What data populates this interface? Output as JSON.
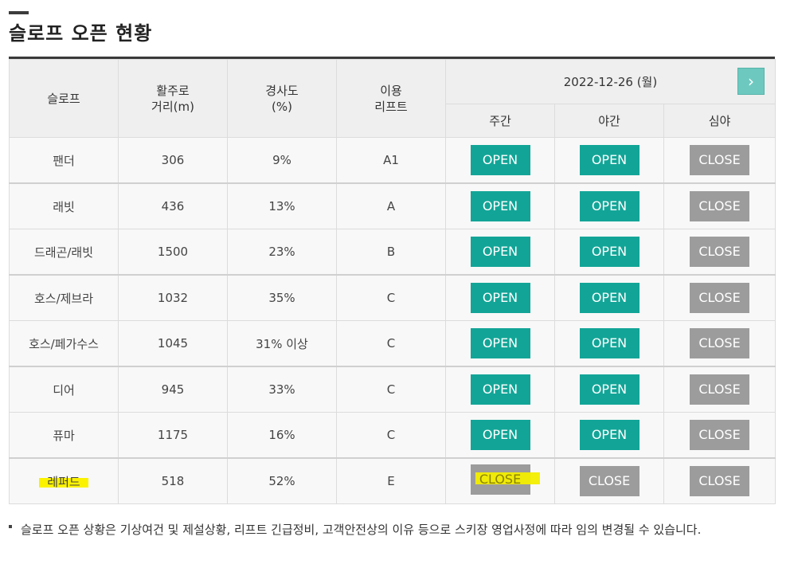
{
  "page": {
    "title": "슬로프 오픈 현황"
  },
  "table": {
    "headers": {
      "slope": "슬로프",
      "distance_line1": "활주로",
      "distance_line2": "거리(m)",
      "grade_line1": "경사도",
      "grade_line2": "(%)",
      "lift_line1": "이용",
      "lift_line2": "리프트",
      "date": "2022-12-26 (월)",
      "day": "주간",
      "night": "야간",
      "late": "심야"
    },
    "next_icon": "chevron-right-icon",
    "rows": [
      {
        "slope": "팬더",
        "distance": "306",
        "grade": "9%",
        "lift": "A1",
        "day": "OPEN",
        "night": "OPEN",
        "late": "CLOSE"
      },
      {
        "slope": "래빗",
        "distance": "436",
        "grade": "13%",
        "lift": "A",
        "day": "OPEN",
        "night": "OPEN",
        "late": "CLOSE"
      },
      {
        "slope": "드래곤/래빗",
        "distance": "1500",
        "grade": "23%",
        "lift": "B",
        "day": "OPEN",
        "night": "OPEN",
        "late": "CLOSE"
      },
      {
        "slope": "호스/제브라",
        "distance": "1032",
        "grade": "35%",
        "lift": "C",
        "day": "OPEN",
        "night": "OPEN",
        "late": "CLOSE"
      },
      {
        "slope": "호스/페가수스",
        "distance": "1045",
        "grade": "31% 이상",
        "lift": "C",
        "day": "OPEN",
        "night": "OPEN",
        "late": "CLOSE"
      },
      {
        "slope": "디어",
        "distance": "945",
        "grade": "33%",
        "lift": "C",
        "day": "OPEN",
        "night": "OPEN",
        "late": "CLOSE"
      },
      {
        "slope": "퓨마",
        "distance": "1175",
        "grade": "16%",
        "lift": "C",
        "day": "OPEN",
        "night": "OPEN",
        "late": "CLOSE"
      },
      {
        "slope": "레퍼드",
        "distance": "518",
        "grade": "52%",
        "lift": "E",
        "day": "CLOSE",
        "night": "CLOSE",
        "late": "CLOSE"
      }
    ]
  },
  "colors": {
    "open": "#12a597",
    "close": "#9c9c9c",
    "next_button": "#6dc9c0",
    "highlight": "#f3ee00"
  },
  "footnote": "슬로프 오픈 상황은 기상여건 및 제설상황, 리프트 긴급정비, 고객안전상의 이유 등으로 스키장 영업사정에 따라 임의 변경될 수 있습니다."
}
